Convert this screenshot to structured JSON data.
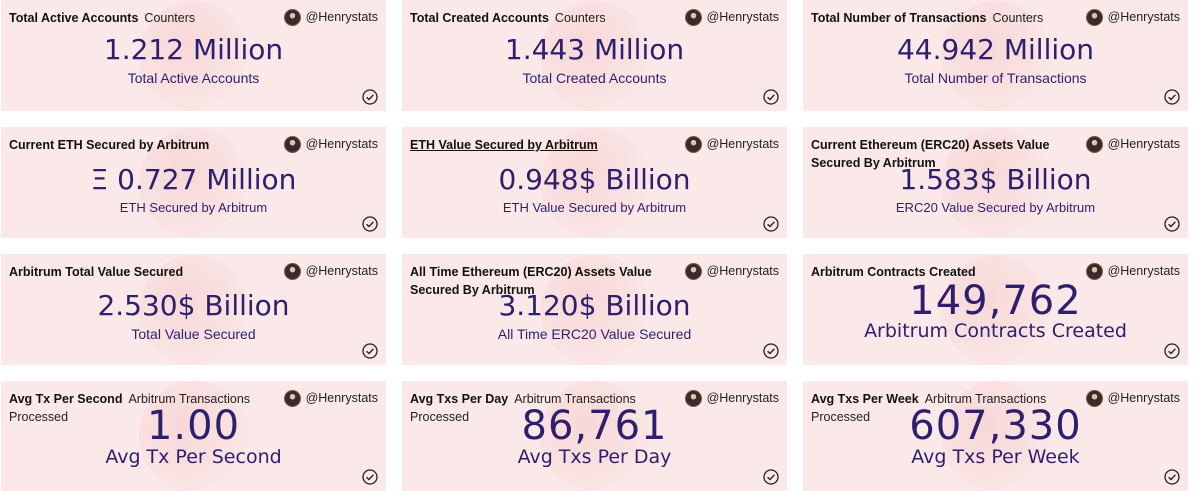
{
  "author": "@Henrystats",
  "cards": [
    {
      "title": "Total Active Accounts",
      "subtitle": "Counters",
      "value": "1.212 Million",
      "label": "Total Active Accounts"
    },
    {
      "title": "Total Created Accounts",
      "subtitle": "Counters",
      "value": "1.443 Million",
      "label": "Total Created Accounts"
    },
    {
      "title": "Total Number of Transactions",
      "subtitle": "Counters",
      "value": "44.942 Million",
      "label": "Total Number of Transactions"
    },
    {
      "title": "Current ETH Secured by Arbitrum",
      "subtitle": "",
      "value": "Ξ 0.727 Million",
      "label": "ETH Secured by Arbitrum"
    },
    {
      "title": "ETH Value Secured by Arbitrum",
      "subtitle": "",
      "value": "0.948$ Billion",
      "label": "ETH Value Secured by Arbitrum"
    },
    {
      "title": "Current Ethereum (ERC20) Assets Value Secured By Arbitrum",
      "subtitle": "",
      "value": "1.583$ Billion",
      "label": "ERC20 Value Secured by Arbitrum"
    },
    {
      "title": "Arbitrum Total Value Secured",
      "subtitle": "",
      "value": "2.530$ Billion",
      "label": "Total Value Secured"
    },
    {
      "title": "All Time Ethereum (ERC20) Assets Value Secured By Arbitrum",
      "subtitle": "",
      "value": "3.120$ Billion",
      "label": "All Time ERC20 Value Secured"
    },
    {
      "title": "Arbitrum Contracts Created",
      "subtitle": "",
      "value": "149,762",
      "label": "Arbitrum Contracts Created"
    },
    {
      "title": "Avg Tx Per Second",
      "subtitle": "Arbitrum Transactions Processed",
      "value": "1.00",
      "label": "Avg Tx Per Second"
    },
    {
      "title": "Avg Txs Per Day",
      "subtitle": "Arbitrum Transactions Processed",
      "value": "86,761",
      "label": "Avg Txs Per Day"
    },
    {
      "title": "Avg Txs Per Week",
      "subtitle": "Arbitrum Transactions Processed",
      "value": "607,330",
      "label": "Avg Txs Per Week"
    }
  ],
  "icons": {
    "avatar": "avatar-icon",
    "check": "check-circle-icon"
  },
  "colors": {
    "card_bg": "#fbe9e9",
    "value_text": "#2d1f6e"
  }
}
